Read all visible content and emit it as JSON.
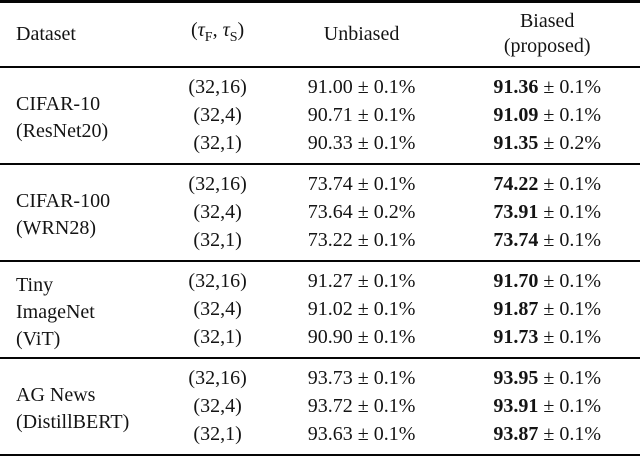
{
  "table": {
    "headers": {
      "dataset": "Dataset",
      "tau": {
        "open": "(",
        "tau1": "τ",
        "sub1": "F",
        "sep": ", ",
        "tau2": "τ",
        "sub2": "S",
        "close": ")"
      },
      "unbiased": "Unbiased",
      "biased_line1": "Biased",
      "biased_line2": "(proposed)"
    },
    "groups": [
      {
        "dataset_lines": [
          "CIFAR-10",
          "(ResNet20)"
        ],
        "rows": [
          {
            "tau": "(32,16)",
            "unbiased": "91.00 ± 0.1%",
            "biased_value": "91.36",
            "biased_err": "± 0.1%"
          },
          {
            "tau": "(32,4)",
            "unbiased": "90.71 ± 0.1%",
            "biased_value": "91.09",
            "biased_err": "± 0.1%"
          },
          {
            "tau": "(32,1)",
            "unbiased": "90.33 ± 0.1%",
            "biased_value": "91.35",
            "biased_err": "± 0.2%"
          }
        ]
      },
      {
        "dataset_lines": [
          "CIFAR-100",
          "(WRN28)"
        ],
        "rows": [
          {
            "tau": "(32,16)",
            "unbiased": "73.74 ± 0.1%",
            "biased_value": "74.22",
            "biased_err": "± 0.1%"
          },
          {
            "tau": "(32,4)",
            "unbiased": "73.64 ± 0.2%",
            "biased_value": "73.91",
            "biased_err": "± 0.1%"
          },
          {
            "tau": "(32,1)",
            "unbiased": "73.22 ± 0.1%",
            "biased_value": "73.74",
            "biased_err": "± 0.1%"
          }
        ]
      },
      {
        "dataset_lines": [
          "Tiny",
          "ImageNet",
          "(ViT)"
        ],
        "rows": [
          {
            "tau": "(32,16)",
            "unbiased": "91.27 ± 0.1%",
            "biased_value": "91.70",
            "biased_err": "± 0.1%"
          },
          {
            "tau": "(32,4)",
            "unbiased": "91.02 ± 0.1%",
            "biased_value": "91.87",
            "biased_err": "± 0.1%"
          },
          {
            "tau": "(32,1)",
            "unbiased": "90.90 ± 0.1%",
            "biased_value": "91.73",
            "biased_err": "± 0.1%"
          }
        ]
      },
      {
        "dataset_lines": [
          "AG News",
          "(DistillBERT)"
        ],
        "rows": [
          {
            "tau": "(32,16)",
            "unbiased": "93.73 ± 0.1%",
            "biased_value": "93.95",
            "biased_err": "± 0.1%"
          },
          {
            "tau": "(32,4)",
            "unbiased": "93.72 ± 0.1%",
            "biased_value": "93.91",
            "biased_err": "± 0.1%"
          },
          {
            "tau": "(32,1)",
            "unbiased": "93.63 ± 0.1%",
            "biased_value": "93.87",
            "biased_err": "± 0.1%"
          }
        ]
      }
    ]
  }
}
